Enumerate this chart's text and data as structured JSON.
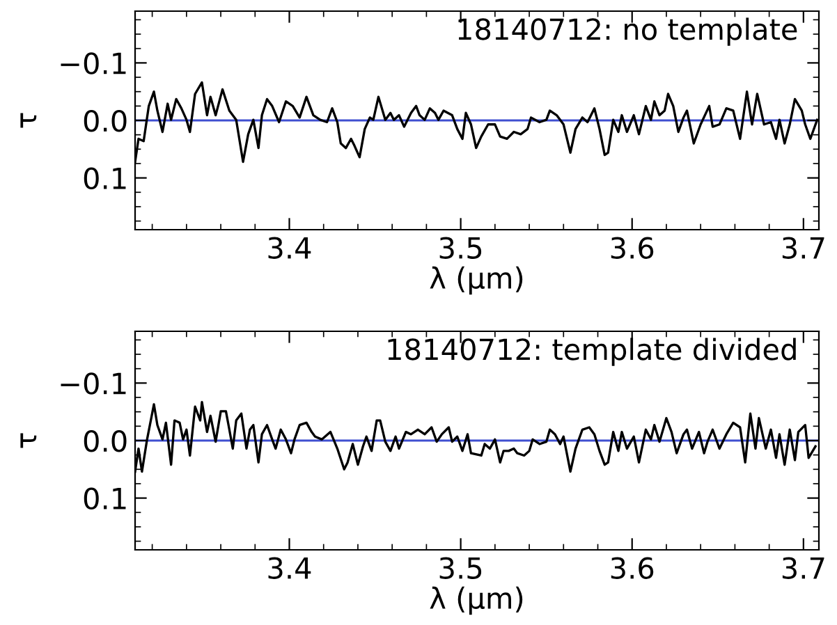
{
  "chart_data": [
    {
      "type": "line",
      "title": "18140712: no template",
      "xlabel": "λ (μm)",
      "ylabel": "τ",
      "xlim": [
        3.31,
        3.709
      ],
      "ylim": [
        0.19,
        -0.19
      ],
      "xticks": [
        3.4,
        3.5,
        3.6,
        3.7
      ],
      "yticks": [
        {
          "value": -0.1,
          "label": "−0.1"
        },
        {
          "value": 0.0,
          "label": "0.0"
        },
        {
          "value": 0.1,
          "label": "0.1"
        }
      ],
      "grid": false,
      "legend": false,
      "ref_lines": [
        {
          "axis": "y",
          "value": 0,
          "color": "#3f4fd0"
        }
      ],
      "series": [
        {
          "color": "#000000",
          "x": [
            3.31,
            3.312,
            3.315,
            3.318,
            3.321,
            3.323,
            3.326,
            3.329,
            3.331,
            3.334,
            3.337,
            3.34,
            3.342,
            3.345,
            3.349,
            3.352,
            3.354,
            3.357,
            3.361,
            3.365,
            3.369,
            3.373,
            3.376,
            3.379,
            3.382,
            3.384,
            3.387,
            3.39,
            3.394,
            3.398,
            3.402,
            3.406,
            3.41,
            3.414,
            3.418,
            3.422,
            3.425,
            3.428,
            3.43,
            3.433,
            3.436,
            3.438,
            3.441,
            3.444,
            3.447,
            3.449,
            3.452,
            3.456,
            3.459,
            3.461,
            3.464,
            3.467,
            3.471,
            3.474,
            3.476,
            3.479,
            3.482,
            3.485,
            3.487,
            3.49,
            3.495,
            3.498,
            3.501,
            3.503,
            3.506,
            3.509,
            3.512,
            3.516,
            3.52,
            3.523,
            3.527,
            3.531,
            3.535,
            3.539,
            3.541,
            3.546,
            3.55,
            3.552,
            3.556,
            3.56,
            3.564,
            3.567,
            3.571,
            3.574,
            3.578,
            3.581,
            3.584,
            3.586,
            3.589,
            3.592,
            3.594,
            3.597,
            3.601,
            3.604,
            3.608,
            3.611,
            3.613,
            3.616,
            3.619,
            3.621,
            3.624,
            3.627,
            3.63,
            3.632,
            3.636,
            3.64,
            3.645,
            3.647,
            3.651,
            3.655,
            3.659,
            3.663,
            3.667,
            3.67,
            3.673,
            3.677,
            3.681,
            3.684,
            3.686,
            3.689,
            3.692,
            3.695,
            3.699,
            3.701,
            3.704,
            3.708
          ],
          "values": [
            0.072,
            0.032,
            0.036,
            -0.025,
            -0.05,
            -0.017,
            0.02,
            -0.029,
            -0.001,
            -0.037,
            -0.021,
            -0.001,
            0.02,
            -0.046,
            -0.066,
            -0.009,
            -0.041,
            -0.009,
            -0.054,
            -0.017,
            -0.001,
            0.072,
            0.024,
            -0.001,
            0.048,
            -0.009,
            -0.037,
            -0.025,
            0.003,
            -0.033,
            -0.025,
            -0.005,
            -0.041,
            -0.009,
            -0.001,
            0.003,
            -0.021,
            0.003,
            0.04,
            0.048,
            0.032,
            0.044,
            0.064,
            0.015,
            -0.005,
            -0.001,
            -0.041,
            -0.001,
            -0.013,
            -0.001,
            -0.009,
            0.011,
            -0.013,
            -0.025,
            -0.009,
            -0.001,
            -0.021,
            -0.013,
            -0.001,
            -0.017,
            -0.009,
            0.015,
            0.032,
            -0.013,
            0.007,
            0.048,
            0.028,
            0.007,
            0.007,
            0.028,
            0.032,
            0.02,
            0.024,
            0.015,
            -0.005,
            0.003,
            -0.001,
            -0.017,
            -0.009,
            0.007,
            0.056,
            0.015,
            -0.005,
            0.003,
            -0.021,
            0.015,
            0.06,
            0.056,
            -0.001,
            0.02,
            -0.009,
            0.02,
            -0.009,
            0.024,
            -0.025,
            -0.001,
            -0.033,
            -0.009,
            -0.017,
            -0.046,
            -0.025,
            0.02,
            -0.005,
            -0.017,
            0.04,
            0.007,
            -0.025,
            0.011,
            0.007,
            -0.021,
            -0.017,
            0.032,
            -0.05,
            0.007,
            -0.046,
            0.007,
            0.003,
            0.032,
            -0.001,
            0.04,
            0.007,
            -0.037,
            -0.017,
            0.007,
            0.032,
            -0.001
          ]
        }
      ]
    },
    {
      "type": "line",
      "title": "18140712: template divided",
      "xlabel": "λ (μm)",
      "ylabel": "τ",
      "xlim": [
        3.31,
        3.709
      ],
      "ylim": [
        0.19,
        -0.19
      ],
      "xticks": [
        3.4,
        3.5,
        3.6,
        3.7
      ],
      "yticks": [
        {
          "value": -0.1,
          "label": "−0.1"
        },
        {
          "value": 0.0,
          "label": "0.0"
        },
        {
          "value": 0.1,
          "label": "0.1"
        }
      ],
      "grid": false,
      "legend": false,
      "ref_lines": [
        {
          "axis": "y",
          "value": 0,
          "color": "#3f4fd0"
        }
      ],
      "series": [
        {
          "color": "#000000",
          "x": [
            3.31,
            3.312,
            3.314,
            3.317,
            3.321,
            3.323,
            3.326,
            3.328,
            3.331,
            3.333,
            3.336,
            3.338,
            3.34,
            3.342,
            3.345,
            3.348,
            3.349,
            3.352,
            3.354,
            3.357,
            3.36,
            3.363,
            3.365,
            3.367,
            3.369,
            3.372,
            3.375,
            3.377,
            3.379,
            3.382,
            3.384,
            3.387,
            3.39,
            3.392,
            3.395,
            3.398,
            3.401,
            3.403,
            3.406,
            3.41,
            3.413,
            3.415,
            3.419,
            3.424,
            3.428,
            3.432,
            3.434,
            3.437,
            3.44,
            3.443,
            3.445,
            3.448,
            3.451,
            3.453,
            3.456,
            3.459,
            3.462,
            3.464,
            3.468,
            3.471,
            3.475,
            3.479,
            3.483,
            3.486,
            3.489,
            3.493,
            3.495,
            3.498,
            3.501,
            3.504,
            3.506,
            3.512,
            3.514,
            3.517,
            3.52,
            3.523,
            3.525,
            3.528,
            3.531,
            3.533,
            3.537,
            3.54,
            3.542,
            3.546,
            3.55,
            3.552,
            3.555,
            3.558,
            3.56,
            3.564,
            3.567,
            3.571,
            3.575,
            3.578,
            3.581,
            3.584,
            3.586,
            3.589,
            3.592,
            3.594,
            3.597,
            3.601,
            3.604,
            3.608,
            3.611,
            3.613,
            3.616,
            3.62,
            3.623,
            3.626,
            3.63,
            3.632,
            3.635,
            3.639,
            3.642,
            3.644,
            3.647,
            3.651,
            3.655,
            3.659,
            3.663,
            3.666,
            3.669,
            3.672,
            3.674,
            3.678,
            3.681,
            3.684,
            3.686,
            3.689,
            3.692,
            3.695,
            3.697,
            3.701,
            3.703,
            3.707
          ],
          "values": [
            0.054,
            0.014,
            0.054,
            -0.002,
            -0.063,
            -0.027,
            -0.002,
            -0.031,
            0.042,
            -0.035,
            -0.031,
            -0.002,
            -0.019,
            0.026,
            -0.059,
            -0.035,
            -0.067,
            -0.015,
            -0.043,
            0.002,
            -0.051,
            -0.051,
            -0.019,
            0.014,
            -0.035,
            -0.047,
            0.014,
            -0.019,
            -0.027,
            0.038,
            -0.011,
            -0.027,
            -0.002,
            0.014,
            -0.019,
            -0.002,
            0.022,
            -0.002,
            -0.027,
            -0.031,
            -0.015,
            -0.007,
            -0.002,
            -0.015,
            0.014,
            0.05,
            0.038,
            0.006,
            0.042,
            0.01,
            -0.007,
            0.018,
            -0.035,
            -0.035,
            0.002,
            0.018,
            -0.007,
            0.014,
            -0.015,
            -0.011,
            -0.019,
            -0.011,
            -0.023,
            0.002,
            -0.011,
            -0.023,
            0.002,
            -0.007,
            0.018,
            -0.011,
            0.022,
            0.026,
            0.006,
            0.014,
            -0.002,
            0.038,
            0.018,
            0.018,
            0.014,
            0.022,
            0.026,
            0.018,
            -0.002,
            0.006,
            0.002,
            -0.019,
            -0.011,
            0.006,
            -0.007,
            0.054,
            0.014,
            -0.019,
            -0.023,
            -0.011,
            0.018,
            0.042,
            0.038,
            -0.015,
            0.018,
            -0.015,
            0.014,
            -0.007,
            0.038,
            -0.019,
            -0.002,
            -0.027,
            0.002,
            -0.039,
            -0.015,
            0.022,
            -0.011,
            -0.019,
            0.014,
            -0.015,
            0.022,
            0.002,
            -0.019,
            0.014,
            -0.011,
            -0.031,
            -0.023,
            0.038,
            -0.047,
            0.014,
            -0.039,
            0.014,
            -0.019,
            0.03,
            -0.011,
            0.042,
            -0.019,
            0.034,
            -0.015,
            -0.027,
            0.03,
            0.01
          ]
        }
      ]
    }
  ]
}
